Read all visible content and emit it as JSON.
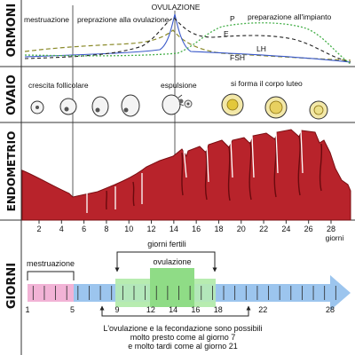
{
  "bands": {
    "ormoni": "ORMONI",
    "ovaio": "OVAIO",
    "endometrio": "ENDOMETRIO",
    "giorni": "GIORNI"
  },
  "hormones": {
    "ovulazione": "OVULAZIONE",
    "mestruazione": "mestruazione",
    "preparazione_ovulazione": "preprazione alla ovulazione",
    "preparazione_impianto": "preparazione all'impianto",
    "label_P": "P",
    "label_E": "E",
    "label_LH": "LH",
    "label_FSH": "FSH"
  },
  "ovaio": {
    "crescita": "crescita follicolare",
    "espulsione": "espulsione",
    "corpo_luteo": "si forma il corpo luteo"
  },
  "endometrio": {
    "day_ticks": [
      "2",
      "4",
      "6",
      "8",
      "10",
      "12",
      "14",
      "16",
      "18",
      "20",
      "22",
      "24",
      "26",
      "28"
    ],
    "giorni_unit": "giorni"
  },
  "giorni": {
    "giorni_fertili": "giorni fertili",
    "ovulazione": "ovulazione",
    "mestruazione": "mestruazione",
    "timeline_labels": [
      "1",
      "5",
      "9",
      "12",
      "14",
      "16",
      "18",
      "22",
      "28"
    ],
    "note_line1": "L'ovulazione e la fecondazione sono possibili",
    "note_line2": "molto presto come al giorno 7",
    "note_line3": "e molto tardi come al giorno 21"
  },
  "colors": {
    "endometrium": "#b8232b",
    "endometrium_dark": "#7a0e12",
    "menstruation": "#f2b3d6",
    "fertile": "#b7ecb0",
    "ovulation": "#8fdc86",
    "timeline": "#9cc5ee",
    "progesterone": "#47b04b",
    "estrogen": "#222222",
    "lh": "#3a59c9",
    "fsh": "#8a8a2a"
  }
}
